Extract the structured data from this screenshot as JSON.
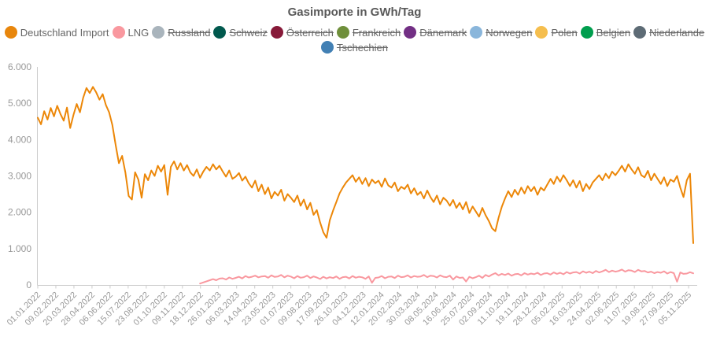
{
  "title": "Gasimporte in GWh/Tag",
  "legend": {
    "items": [
      {
        "label": "Deutschland Import",
        "color": "#E8860C",
        "active": true
      },
      {
        "label": "LNG",
        "color": "#F9989F",
        "active": true
      },
      {
        "label": "Russland",
        "color": "#A9B4BC",
        "active": false
      },
      {
        "label": "Schweiz",
        "color": "#01594E",
        "active": false
      },
      {
        "label": "Österreich",
        "color": "#871A39",
        "active": false
      },
      {
        "label": "Frankreich",
        "color": "#6F8F3B",
        "active": false
      },
      {
        "label": "Dänemark",
        "color": "#722F84",
        "active": false
      },
      {
        "label": "Norwegen",
        "color": "#8AB6DB",
        "active": false
      },
      {
        "label": "Polen",
        "color": "#F5BE4E",
        "active": false
      },
      {
        "label": "Belgien",
        "color": "#009E4E",
        "active": false
      },
      {
        "label": "Niederlande",
        "color": "#5D6B75",
        "active": false
      },
      {
        "label": "Tschechien",
        "color": "#4280B4",
        "active": false
      }
    ]
  },
  "chart_data": {
    "type": "line",
    "title": "Gasimporte in GWh/Tag",
    "ylabel": "GWh/Tag",
    "xlabel": "",
    "ylim": [
      0,
      6000
    ],
    "grid": false,
    "legend_position": "top",
    "y_ticks": [
      "0",
      "1.000",
      "2.000",
      "3.000",
      "4.000",
      "5.000",
      "6.000"
    ],
    "x_tick_labels": [
      "01.01.2022",
      "09.02.2022",
      "20.03.2022",
      "28.04.2022",
      "06.06.2022",
      "15.07.2022",
      "23.08.2022",
      "01.10.2022",
      "09.11.2022",
      "18.12.2022",
      "26.01.2023",
      "06.03.2023",
      "14.04.2023",
      "23.05.2023",
      "01.07.2023",
      "09.08.2023",
      "17.09.2023",
      "26.10.2023",
      "04.12.2023",
      "12.01.2024",
      "20.02.2024",
      "30.03.2024",
      "08.05.2024",
      "16.06.2024",
      "25.07.2024",
      "02.09.2024",
      "11.10.2024",
      "19.11.2024",
      "28.12.2024",
      "05.02.2025",
      "16.03.2025",
      "24.04.2025",
      "02.06.2025",
      "11.07.2025",
      "19.08.2025",
      "27.09.2025",
      "05.11.2025"
    ],
    "x_label_interval_days": 39,
    "sample_interval_days": 7,
    "series": [
      {
        "name": "Deutschland Import",
        "color": "#EC8708",
        "start_week": 0,
        "values": [
          4600,
          4420,
          4780,
          4550,
          4870,
          4640,
          4930,
          4700,
          4520,
          4880,
          4320,
          4680,
          4980,
          4750,
          5150,
          5420,
          5280,
          5450,
          5300,
          5100,
          5250,
          4950,
          4750,
          4400,
          3850,
          3350,
          3550,
          3100,
          2450,
          2350,
          3100,
          2900,
          2400,
          3050,
          2880,
          3150,
          3000,
          3280,
          3120,
          3300,
          2480,
          3250,
          3400,
          3180,
          3350,
          3150,
          3300,
          3100,
          3000,
          3180,
          2950,
          3120,
          3250,
          3150,
          3320,
          3180,
          3280,
          3120,
          2980,
          3150,
          2920,
          2980,
          3080,
          2870,
          2980,
          2800,
          2680,
          2870,
          2580,
          2760,
          2500,
          2680,
          2380,
          2560,
          2460,
          2620,
          2320,
          2500,
          2400,
          2280,
          2460,
          2180,
          2350,
          2080,
          2260,
          1930,
          2060,
          1720,
          1450,
          1300,
          1780,
          2050,
          2280,
          2520,
          2680,
          2820,
          2920,
          3020,
          2840,
          2960,
          2780,
          2940,
          2720,
          2900,
          2800,
          2870,
          2700,
          2930,
          2740,
          2680,
          2820,
          2580,
          2700,
          2640,
          2760,
          2520,
          2660,
          2480,
          2560,
          2380,
          2600,
          2420,
          2280,
          2460,
          2220,
          2400,
          2320,
          2180,
          2340,
          2120,
          2260,
          2080,
          2280,
          1980,
          2160,
          2020,
          1880,
          2120,
          1920,
          1760,
          1560,
          1480,
          1850,
          2150,
          2380,
          2580,
          2420,
          2620,
          2480,
          2680,
          2520,
          2720,
          2580,
          2700,
          2480,
          2680,
          2600,
          2760,
          2920,
          2780,
          2980,
          2840,
          3020,
          2880,
          2720,
          2880,
          2680,
          2860,
          2580,
          2780,
          2640,
          2820,
          2920,
          3020,
          2880,
          3060,
          2940,
          3120,
          3020,
          3140,
          3280,
          3120,
          3320,
          3180,
          3060,
          3240,
          3020,
          2960,
          3140,
          2880,
          3060,
          2920,
          2780,
          2960,
          2720,
          2900,
          2840,
          3000,
          2680,
          2420,
          2880,
          3060,
          1150
        ]
      },
      {
        "name": "LNG",
        "color": "#F9989F",
        "start_week": 50,
        "values": [
          40,
          70,
          100,
          130,
          160,
          130,
          175,
          185,
          150,
          205,
          170,
          195,
          225,
          180,
          245,
          205,
          225,
          255,
          210,
          235,
          245,
          200,
          265,
          220,
          235,
          275,
          210,
          255,
          230,
          185,
          245,
          200,
          215,
          255,
          190,
          235,
          205,
          165,
          225,
          180,
          215,
          190,
          235,
          170,
          215,
          225,
          180,
          245,
          200,
          225,
          210,
          170,
          235,
          60,
          195,
          205,
          245,
          185,
          225,
          235,
          190,
          255,
          215,
          225,
          265,
          205,
          245,
          225,
          235,
          275,
          215,
          255,
          245,
          205,
          265,
          225,
          215,
          255,
          150,
          235,
          195,
          205,
          95,
          225,
          185,
          215,
          255,
          195,
          275,
          235,
          285,
          325,
          265,
          305,
          275,
          315,
          255,
          295,
          305,
          265,
          325,
          285,
          315,
          295,
          335,
          275,
          315,
          325,
          285,
          345,
          305,
          335,
          295,
          355,
          315,
          345,
          355,
          315,
          375,
          335,
          365,
          325,
          385,
          345,
          375,
          415,
          355,
          395,
          365,
          385,
          425,
          365,
          405,
          395,
          355,
          415,
          375,
          385,
          345,
          365,
          325,
          355,
          335,
          375,
          315,
          355,
          325,
          90,
          345,
          305,
          315,
          350,
          320
        ]
      }
    ]
  }
}
